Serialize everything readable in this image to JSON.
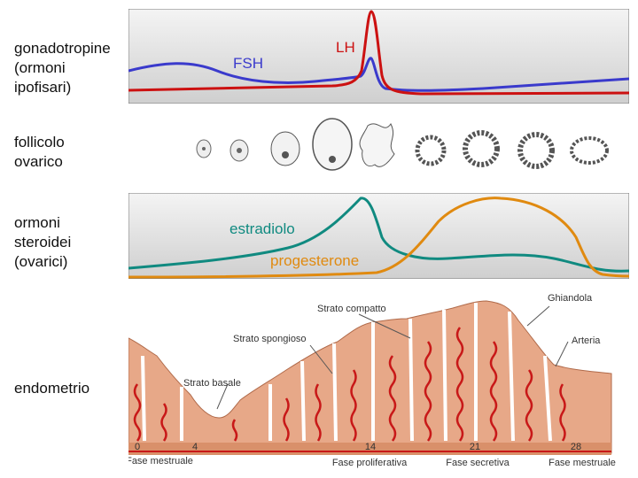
{
  "rows": {
    "gonadotropins": {
      "line1": "gonadotropine",
      "line2": "(ormoni",
      "line3": "ipofisari)"
    },
    "follicle": {
      "line1": "follicolo",
      "line2": "ovarico"
    },
    "steroids": {
      "line1": "ormoni",
      "line2": "steroidei",
      "line3": "(ovarici)"
    },
    "endometrium": {
      "line1": "endometrio"
    }
  },
  "hormones": {
    "fsh": {
      "label": "FSH",
      "color": "#3a3acc"
    },
    "lh": {
      "label": "LH",
      "color": "#cc1111"
    },
    "estradiol": {
      "label": "estradiolo",
      "color": "#108a80"
    },
    "progesterone": {
      "label": "progesterone",
      "color": "#e08a10"
    }
  },
  "endometrium": {
    "labels": {
      "compact": "Strato compatto",
      "spongy": "Strato spongioso",
      "basal": "Strato basale",
      "gland": "Ghiandola",
      "artery": "Arteria"
    }
  },
  "timeline": {
    "days": [
      "0",
      "4",
      "14",
      "21",
      "28"
    ],
    "phases": [
      "Fase mestruale",
      "Fase proliferativa",
      "Fase secretiva",
      "Fase mestruale"
    ]
  }
}
